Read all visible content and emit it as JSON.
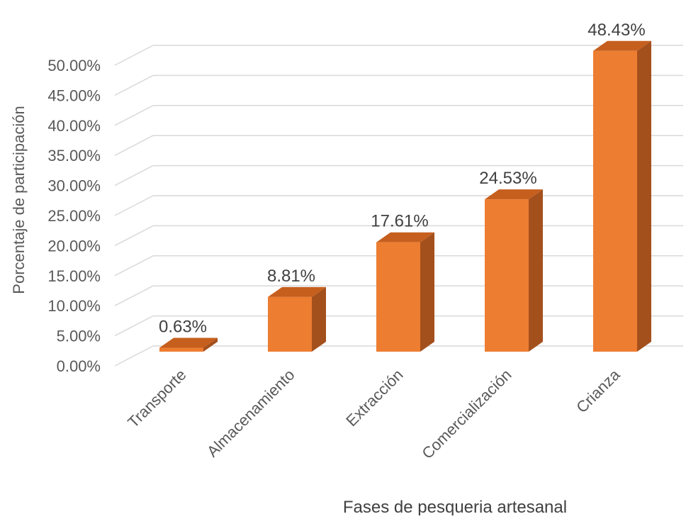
{
  "chart_data": {
    "type": "bar",
    "style": "3d-column",
    "title": "",
    "xlabel": "Fases de pesqueria artesanal",
    "ylabel": "Porcentaje de participación",
    "categories": [
      "Transporte",
      "Almacenamiento",
      "Extracción",
      "Comercialización",
      "Crianza"
    ],
    "values": [
      0.63,
      8.81,
      17.61,
      24.53,
      48.43
    ],
    "data_labels": [
      "0.63%",
      "8.81%",
      "17.61%",
      "24.53%",
      "48.43%"
    ],
    "ylim": [
      0,
      50
    ],
    "yticks": [
      0,
      5,
      10,
      15,
      20,
      25,
      30,
      35,
      40,
      45,
      50
    ],
    "ytick_labels": [
      "0.00%",
      "5.00%",
      "10.00%",
      "15.00%",
      "20.00%",
      "25.00%",
      "30.00%",
      "35.00%",
      "40.00%",
      "45.00%",
      "50.00%"
    ],
    "grid": true,
    "legend": "none",
    "colors": {
      "bar_front": "#ED7D31",
      "bar_top": "#C65F1E",
      "bar_side": "#A4501D",
      "grid": "#D9D9D9",
      "text": "#404040",
      "axis_text": "#595959"
    }
  }
}
